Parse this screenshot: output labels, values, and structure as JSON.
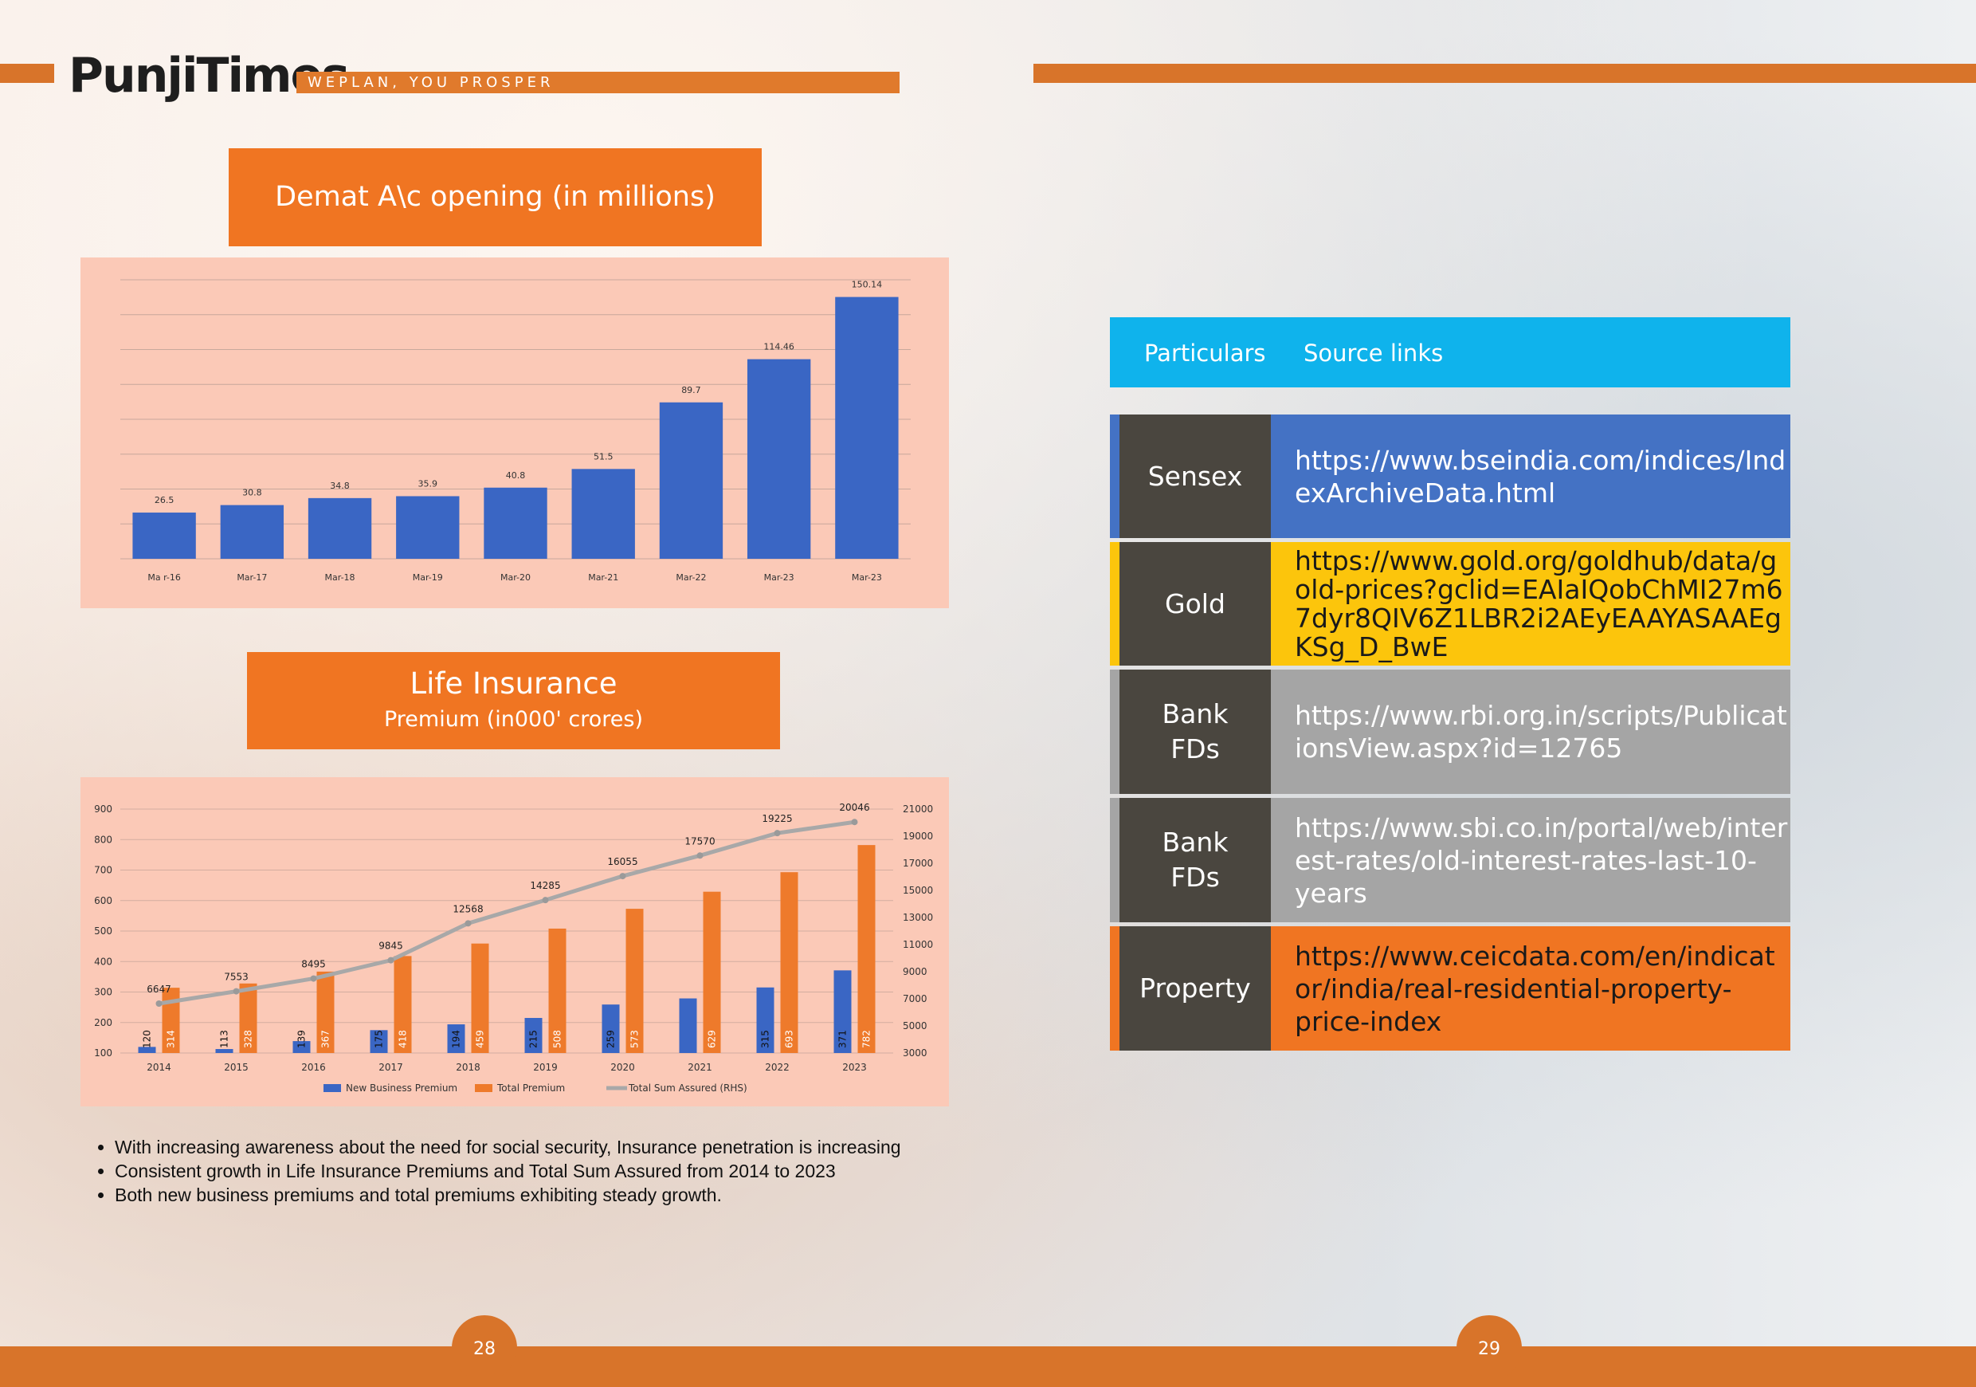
{
  "brand": {
    "name": "PunjiTimes",
    "tagline": "WEPLAN, YOU PROSPER"
  },
  "demat": {
    "title": "Demat A\\c opening (in millions)",
    "chart_data": {
      "type": "bar",
      "categories": [
        "Ma r-16",
        "Mar-17",
        "Mar-18",
        "Mar-19",
        "Mar-20",
        "Mar-21",
        "Mar-22",
        "Mar-23",
        "Mar-23"
      ],
      "values": [
        26.5,
        30.8,
        34.8,
        35.9,
        40.8,
        51.5,
        89.7,
        114.46,
        150.14
      ],
      "data_labels": [
        "26.5",
        "30.8",
        "34.8",
        "35.9",
        "40.8",
        "51.5",
        "89.7",
        "114.46",
        "150.14"
      ],
      "ylim": [
        0,
        160
      ],
      "grid": true,
      "color": "#3a66c4"
    }
  },
  "insurance": {
    "title": "Life Insurance",
    "subtitle": "Premium (in000' crores)",
    "chart_data": {
      "type": "bar",
      "categories": [
        "2014",
        "2015",
        "2016",
        "2017",
        "2018",
        "2019",
        "2020",
        "2021",
        "2022",
        "2023"
      ],
      "left_ticks": [
        "900",
        "800",
        "700",
        "600",
        "500",
        "400",
        "300",
        "200",
        "100"
      ],
      "right_ticks": [
        "21000",
        "19000",
        "17000",
        "15000",
        "13000",
        "11000",
        "9000",
        "7000",
        "5000",
        "3000"
      ],
      "ylim_left": [
        100,
        900
      ],
      "ylim_right": [
        3000,
        21000
      ],
      "series": [
        {
          "name": "New Business Premium",
          "color": "#3a66c4",
          "values": [
            120,
            113,
            139,
            175,
            194,
            215,
            259,
            279,
            315,
            371
          ],
          "labels": [
            "120",
            "113",
            "139",
            "175",
            "194",
            "215",
            "259",
            "",
            "315",
            "371"
          ]
        },
        {
          "name": "Total Premium",
          "color": "#ee7a2b",
          "values": [
            314,
            328,
            367,
            418,
            459,
            508,
            573,
            629,
            693,
            782
          ],
          "labels": [
            "314",
            "328",
            "367",
            "418",
            "459",
            "508",
            "573",
            "629",
            "693",
            "782"
          ]
        },
        {
          "name": "Total Sum Assured (RHS)",
          "color": "#a8a8a8",
          "type": "line",
          "values": [
            6647,
            7553,
            8495,
            9845,
            12568,
            14285,
            16055,
            17570,
            19225,
            20046
          ],
          "labels": [
            "6647",
            "7553",
            "8495",
            "9845",
            "12568",
            "14285",
            "16055",
            "17570",
            "19225",
            "20046"
          ]
        }
      ],
      "legend": "bottom"
    }
  },
  "bullets": [
    "With increasing awareness about the need for social security, Insurance penetration is increasing",
    "Consistent growth in Life Insurance Premiums and Total Sum Assured from 2014 to 2023",
    "Both new business premiums and total premiums exhibiting steady growth."
  ],
  "sources": {
    "header": {
      "col1": "Particulars",
      "col2": "Source links"
    },
    "rows": [
      {
        "particular": "Sensex",
        "link": "https://www.bseindia.com/indices/IndexArchiveData.html",
        "color": "#4472c4",
        "text_color": "#ffffff"
      },
      {
        "particular": "Gold",
        "link": "https://www.gold.org/goldhub/data/gold-prices?gclid=EAIaIQobChMI27m67dyr8QIV6Z1LBR2i2AEyEAAYASAAEgKSg_D_BwE",
        "color": "#fcc50c",
        "text_color": "#1a1a1a"
      },
      {
        "particular": "Bank FDs",
        "link": "https://www.rbi.org.in/scripts/PublicationsView.aspx?id=12765",
        "color": "#a5a5a5",
        "text_color": "#ffffff"
      },
      {
        "particular": "Bank FDs",
        "link": "https://www.sbi.co.in/portal/web/interest-rates/old-interest-rates-last-10-years",
        "color": "#a5a5a5",
        "text_color": "#ffffff"
      },
      {
        "particular": "Property",
        "link": "https://www.ceicdata.com/en/indicator/india/real-residential-property-price-index",
        "color": "#f07522",
        "text_color": "#1a1a1a"
      }
    ]
  },
  "pages": {
    "left": "28",
    "right": "29"
  }
}
